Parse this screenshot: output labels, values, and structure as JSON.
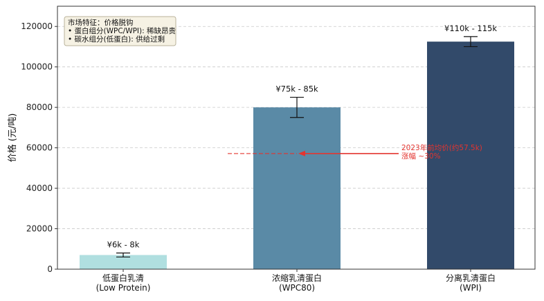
{
  "chart_data": {
    "type": "bar",
    "title": "",
    "ylabel": "价格 (元/吨)",
    "ylim": [
      0,
      130000
    ],
    "yticks": [
      0,
      20000,
      40000,
      60000,
      80000,
      100000,
      120000
    ],
    "grid": "y-dashed",
    "categories": [
      {
        "line1": "低蛋白乳清",
        "line2": "(Low Protein)"
      },
      {
        "line1": "浓缩乳清蛋白",
        "line2": "(WPC80)"
      },
      {
        "line1": "分离乳清蛋白",
        "line2": "(WPI)"
      }
    ],
    "values": [
      7000,
      80000,
      112500
    ],
    "error_low": [
      6000,
      75000,
      110000
    ],
    "error_high": [
      8000,
      85000,
      115000
    ],
    "data_labels": [
      "¥6k - 8k",
      "¥75k - 85k",
      "¥110k - 115k"
    ],
    "colors": [
      "#b0dfe0",
      "#5a8aa6",
      "#324a6a"
    ],
    "info_box": {
      "lines": [
        "市场特征：价格脱钩",
        "• 蛋白组分(WPC/WPI): 稀缺昂贵",
        "• 碳水组分(低蛋白): 供给过剩"
      ]
    },
    "annotation": {
      "lines": [
        "2023年前均价(约57.5k)",
        "涨幅 ~30%"
      ],
      "reference_value": 57500,
      "color": "#e3342f"
    }
  }
}
